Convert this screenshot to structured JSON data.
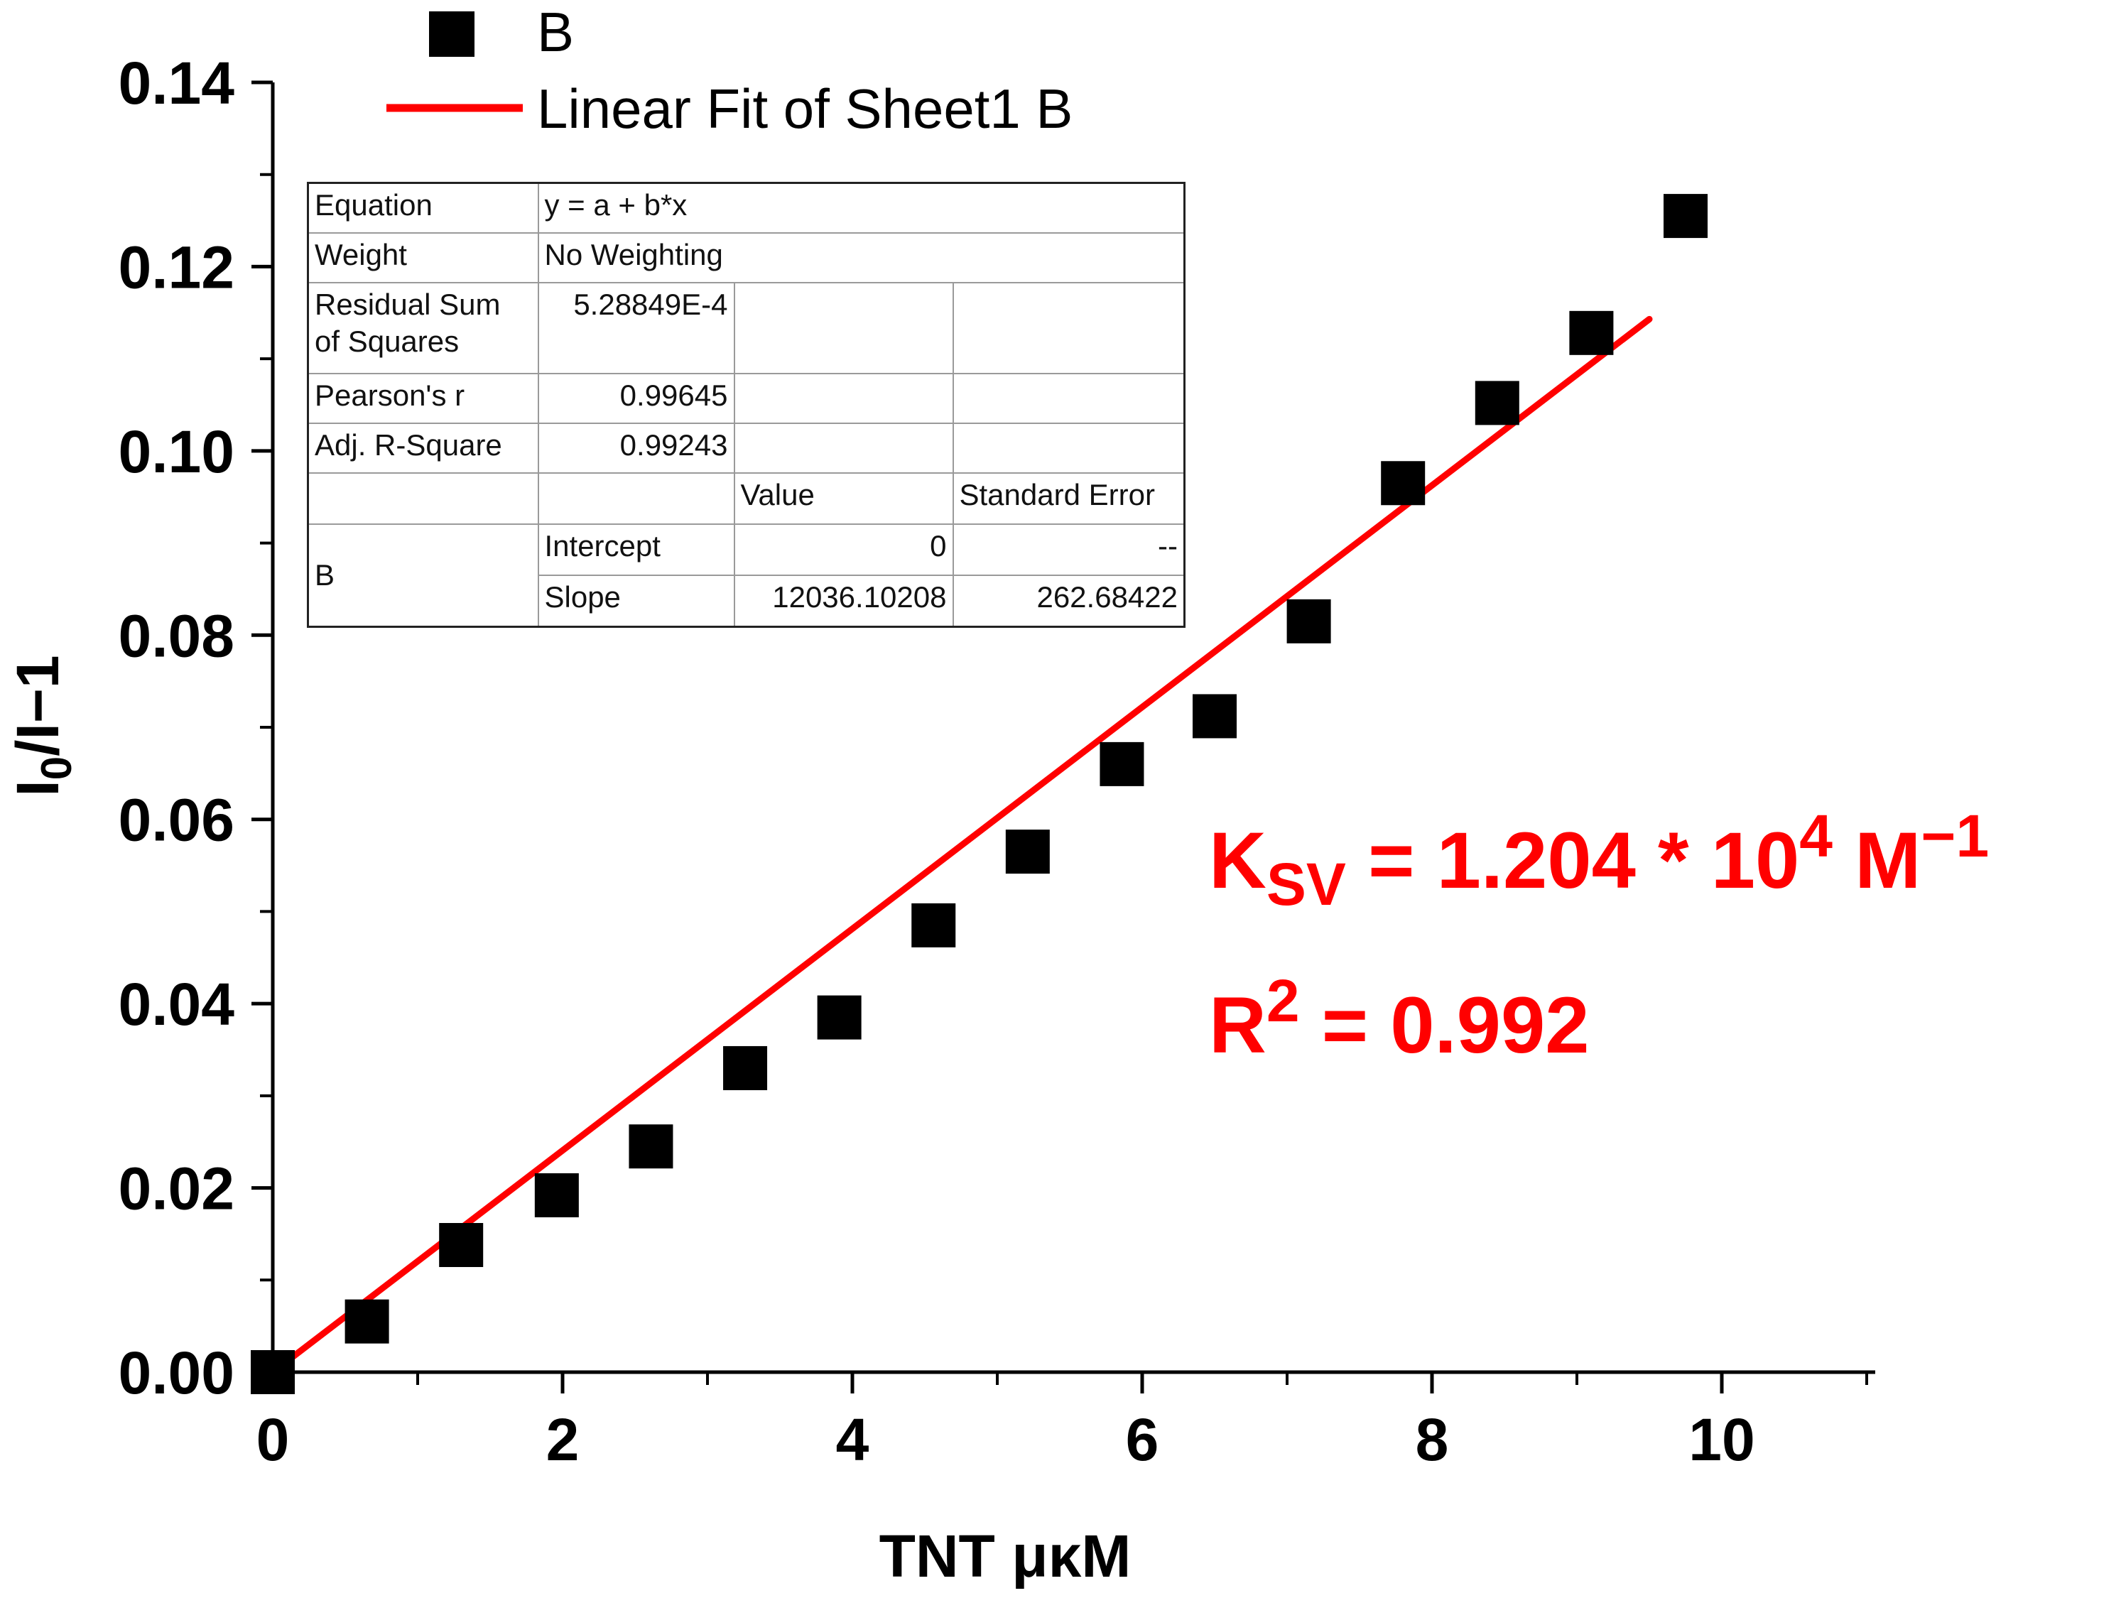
{
  "chart_data": {
    "type": "scatter",
    "xlabel": "TNT μκM",
    "ylabel_main": "I",
    "ylabel_sub": "0",
    "ylabel_rest": "/I−1",
    "xlim": [
      0,
      11
    ],
    "ylim": [
      0,
      0.14
    ],
    "x_ticks": [
      0,
      2,
      4,
      6,
      8,
      10
    ],
    "x_tick_labels": [
      "0",
      "2",
      "4",
      "6",
      "8",
      "10"
    ],
    "y_ticks": [
      0,
      0.02,
      0.04,
      0.06,
      0.08,
      0.1,
      0.12,
      0.14
    ],
    "y_tick_labels": [
      "0.00",
      "0.02",
      "0.04",
      "0.06",
      "0.08",
      "0.10",
      "0.12",
      "0.14"
    ],
    "grid": false,
    "legend_position": "top-left",
    "series": [
      {
        "name": "B",
        "kind": "scatter",
        "marker": "square",
        "color": "#000000",
        "x": [
          0.0,
          0.65,
          1.3,
          1.96,
          2.61,
          3.26,
          3.91,
          4.56,
          5.21,
          5.86,
          6.5,
          7.15,
          7.8,
          8.45,
          9.1,
          9.75
        ],
        "y": [
          0.0,
          0.0055,
          0.0138,
          0.0192,
          0.0245,
          0.033,
          0.0385,
          0.0485,
          0.0565,
          0.066,
          0.0712,
          0.0815,
          0.0965,
          0.1052,
          0.1128,
          0.1255
        ]
      },
      {
        "name": "Linear Fit of Sheet1 B",
        "kind": "line",
        "color": "#ff0000",
        "x": [
          0.0,
          9.5
        ],
        "y": [
          0.0,
          0.1143
        ]
      }
    ],
    "fit_table": {
      "equation_label": "Equation",
      "equation_value": "y = a + b*x",
      "weight_label": "Weight",
      "weight_value": "No Weighting",
      "rss_label_line1": "Residual Sum",
      "rss_label_line2": "of Squares",
      "rss_value": "5.28849E-4",
      "pearson_label": "Pearson's r",
      "pearson_value": "0.99645",
      "adjr_label": "Adj. R-Square",
      "adjr_value": "0.99243",
      "value_header": "Value",
      "stderr_header": "Standard Error",
      "series_label": "B",
      "intercept_label": "Intercept",
      "intercept_value": "0",
      "intercept_error": "--",
      "slope_label": "Slope",
      "slope_value": "12036.10208",
      "slope_error": "262.68422"
    },
    "annotations": {
      "ksv_K": "K",
      "ksv_sub": "SV",
      "ksv_eq": " = 1.204 * 10",
      "ksv_exp": "4",
      "ksv_unit": " M",
      "ksv_unit_exp": "−1",
      "r2_R": "R",
      "r2_exp": "2",
      "r2_eq": " = 0.992"
    }
  }
}
